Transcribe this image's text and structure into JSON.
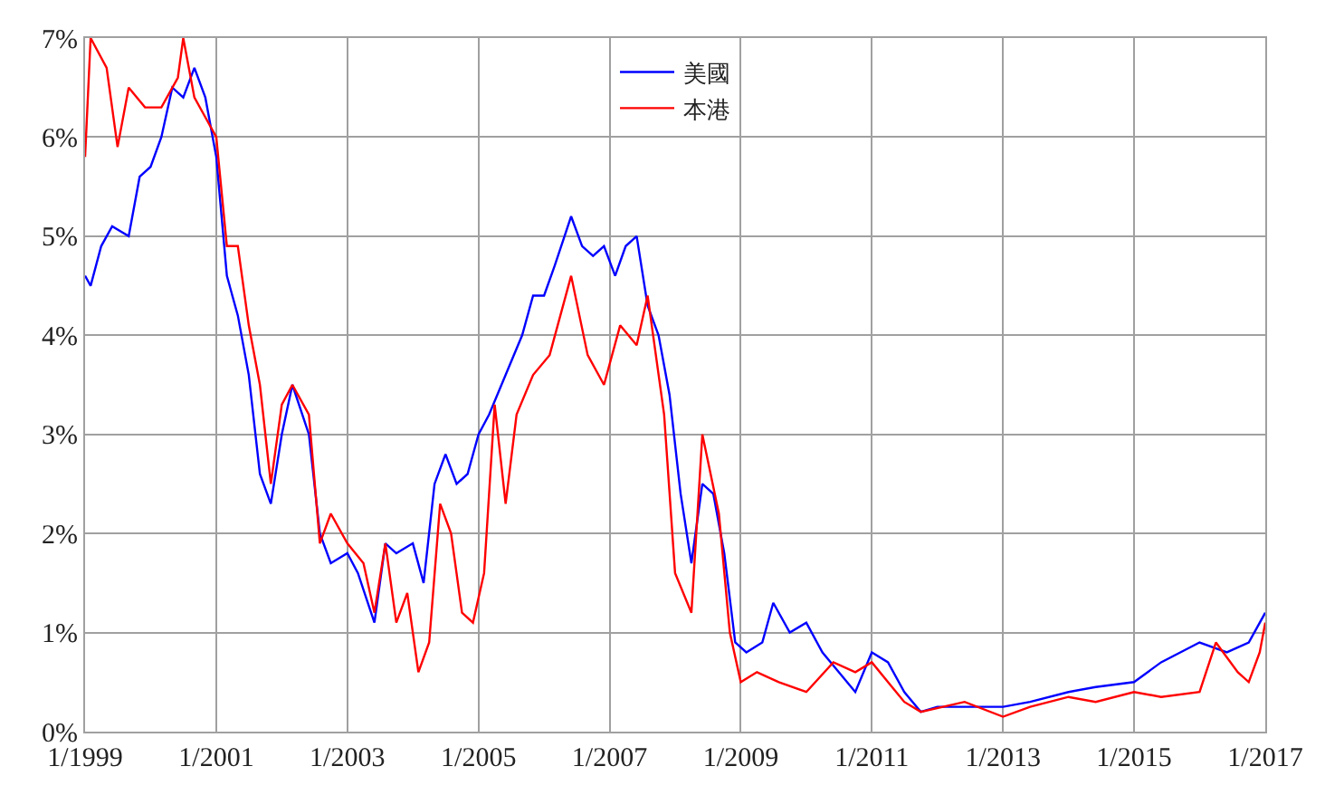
{
  "chart_data": {
    "type": "line",
    "xlim": [
      "1999-01-01",
      "2017-01-01"
    ],
    "xticks": [
      {
        "value": "1999-01-01",
        "label": "1/1999"
      },
      {
        "value": "2001-01-01",
        "label": "1/2001"
      },
      {
        "value": "2003-01-01",
        "label": "1/2003"
      },
      {
        "value": "2005-01-01",
        "label": "1/2005"
      },
      {
        "value": "2007-01-01",
        "label": "1/2007"
      },
      {
        "value": "2009-01-01",
        "label": "1/2009"
      },
      {
        "value": "2011-01-01",
        "label": "1/2011"
      },
      {
        "value": "2013-01-01",
        "label": "1/2013"
      },
      {
        "value": "2015-01-01",
        "label": "1/2015"
      },
      {
        "value": "2017-01-01",
        "label": "1/2017"
      }
    ],
    "ylim": [
      0,
      7
    ],
    "yticks": [
      {
        "value": 0,
        "label": "0%"
      },
      {
        "value": 1,
        "label": "1%"
      },
      {
        "value": 2,
        "label": "2%"
      },
      {
        "value": 3,
        "label": "3%"
      },
      {
        "value": 4,
        "label": "4%"
      },
      {
        "value": 5,
        "label": "5%"
      },
      {
        "value": 6,
        "label": "6%"
      },
      {
        "value": 7,
        "label": "7%"
      }
    ],
    "grid": true,
    "legend": "top",
    "marker": "none",
    "line_style": "solid",
    "series": [
      {
        "name": "美國",
        "color": "#0000ff",
        "x": [
          "1999-01",
          "1999-02",
          "1999-04",
          "1999-06",
          "1999-09",
          "1999-11",
          "2000-01",
          "2000-03",
          "2000-05",
          "2000-07",
          "2000-09",
          "2000-11",
          "2001-01",
          "2001-03",
          "2001-05",
          "2001-07",
          "2001-09",
          "2001-11",
          "2002-01",
          "2002-03",
          "2002-06",
          "2002-08",
          "2002-10",
          "2003-01",
          "2003-03",
          "2003-06",
          "2003-08",
          "2003-10",
          "2004-01",
          "2004-03",
          "2004-05",
          "2004-07",
          "2004-09",
          "2004-11",
          "2005-01",
          "2005-03",
          "2005-06",
          "2005-09",
          "2005-11",
          "2006-01",
          "2006-03",
          "2006-06",
          "2006-08",
          "2006-10",
          "2006-12",
          "2007-02",
          "2007-04",
          "2007-06",
          "2007-08",
          "2007-10",
          "2007-12",
          "2008-02",
          "2008-04",
          "2008-06",
          "2008-08",
          "2008-10",
          "2008-12",
          "2009-02",
          "2009-05",
          "2009-07",
          "2009-10",
          "2010-01",
          "2010-04",
          "2010-07",
          "2010-10",
          "2011-01",
          "2011-04",
          "2011-07",
          "2011-10",
          "2012-01",
          "2012-06",
          "2013-01",
          "2013-06",
          "2014-01",
          "2014-06",
          "2015-01",
          "2015-06",
          "2016-01",
          "2016-06",
          "2016-10",
          "2017-01"
        ],
        "values": [
          4.6,
          4.5,
          4.9,
          5.1,
          5.0,
          5.6,
          5.7,
          6.0,
          6.5,
          6.4,
          6.7,
          6.4,
          5.8,
          4.6,
          4.2,
          3.6,
          2.6,
          2.3,
          3.0,
          3.5,
          3.0,
          2.0,
          1.7,
          1.8,
          1.6,
          1.1,
          1.9,
          1.8,
          1.9,
          1.5,
          2.5,
          2.8,
          2.5,
          2.6,
          3.0,
          3.2,
          3.6,
          4.0,
          4.4,
          4.4,
          4.7,
          5.2,
          4.9,
          4.8,
          4.9,
          4.6,
          4.9,
          5.0,
          4.3,
          4.0,
          3.4,
          2.4,
          1.7,
          2.5,
          2.4,
          1.8,
          0.9,
          0.8,
          0.9,
          1.3,
          1.0,
          1.1,
          0.8,
          0.6,
          0.4,
          0.8,
          0.7,
          0.4,
          0.2,
          0.25,
          0.25,
          0.25,
          0.3,
          0.4,
          0.45,
          0.5,
          0.7,
          0.9,
          0.8,
          0.9,
          1.2
        ]
      },
      {
        "name": "本港",
        "color": "#ff0000",
        "x": [
          "1999-01",
          "1999-02",
          "1999-05",
          "1999-07",
          "1999-09",
          "1999-12",
          "2000-03",
          "2000-06",
          "2000-07",
          "2000-09",
          "2000-11",
          "2001-01",
          "2001-03",
          "2001-05",
          "2001-07",
          "2001-09",
          "2001-11",
          "2002-01",
          "2002-03",
          "2002-06",
          "2002-08",
          "2002-10",
          "2003-01",
          "2003-04",
          "2003-06",
          "2003-08",
          "2003-10",
          "2003-12",
          "2004-02",
          "2004-04",
          "2004-06",
          "2004-08",
          "2004-10",
          "2004-12",
          "2005-02",
          "2005-04",
          "2005-06",
          "2005-08",
          "2005-11",
          "2006-02",
          "2006-06",
          "2006-09",
          "2006-12",
          "2007-03",
          "2007-06",
          "2007-08",
          "2007-11",
          "2008-01",
          "2008-04",
          "2008-06",
          "2008-09",
          "2008-11",
          "2009-01",
          "2009-04",
          "2009-08",
          "2010-01",
          "2010-06",
          "2010-10",
          "2011-01",
          "2011-04",
          "2011-07",
          "2011-10",
          "2012-06",
          "2013-01",
          "2013-06",
          "2014-01",
          "2014-06",
          "2015-01",
          "2015-06",
          "2016-01",
          "2016-04",
          "2016-08",
          "2016-10",
          "2016-12",
          "2017-01"
        ],
        "values": [
          5.8,
          7.0,
          6.7,
          5.9,
          6.5,
          6.3,
          6.3,
          6.6,
          7.0,
          6.4,
          6.2,
          6.0,
          4.9,
          4.9,
          4.1,
          3.5,
          2.5,
          3.3,
          3.5,
          3.2,
          1.9,
          2.2,
          1.9,
          1.7,
          1.2,
          1.9,
          1.1,
          1.4,
          0.6,
          0.9,
          2.3,
          2.0,
          1.2,
          1.1,
          1.6,
          3.3,
          2.3,
          3.2,
          3.6,
          3.8,
          4.6,
          3.8,
          3.5,
          4.1,
          3.9,
          4.4,
          3.2,
          1.6,
          1.2,
          3.0,
          2.2,
          1.0,
          0.5,
          0.6,
          0.5,
          0.4,
          0.7,
          0.6,
          0.7,
          0.5,
          0.3,
          0.2,
          0.3,
          0.15,
          0.25,
          0.35,
          0.3,
          0.4,
          0.35,
          0.4,
          0.9,
          0.6,
          0.5,
          0.8,
          1.1
        ]
      }
    ]
  }
}
